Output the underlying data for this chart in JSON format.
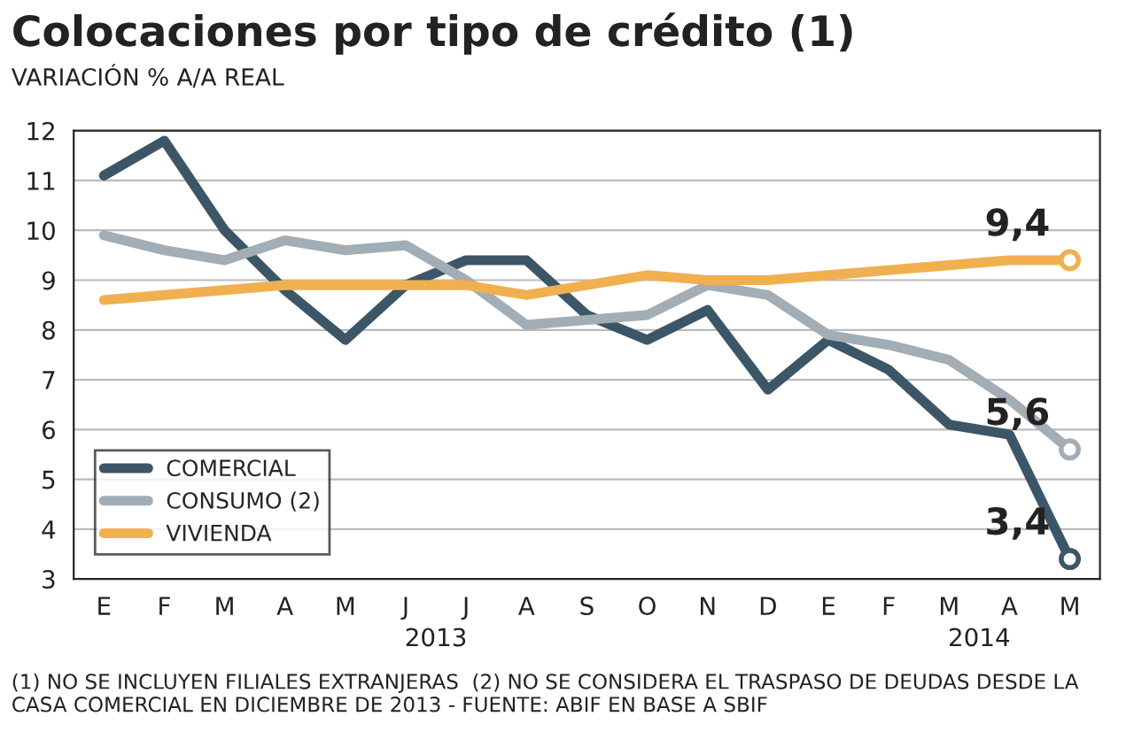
{
  "chart_data": {
    "type": "line",
    "title": "Colocaciones por tipo de crédito (1)",
    "subtitle": "VARIACIÓN % A/A REAL",
    "categories": [
      "E",
      "F",
      "M",
      "A",
      "M",
      "J",
      "J",
      "A",
      "S",
      "O",
      "N",
      "D",
      "E",
      "F",
      "M",
      "A",
      "M"
    ],
    "series": [
      {
        "name": "COMERCIAL",
        "color": "#3d5667",
        "values": [
          11.1,
          11.8,
          10.0,
          8.8,
          7.8,
          8.9,
          9.4,
          9.4,
          8.3,
          7.8,
          8.4,
          6.8,
          7.8,
          7.2,
          6.1,
          5.9,
          3.4
        ],
        "value_labels": [
          null,
          null,
          null,
          null,
          null,
          null,
          null,
          null,
          null,
          null,
          null,
          null,
          null,
          null,
          null,
          null,
          "3,4"
        ]
      },
      {
        "name": "CONSUMO (2)",
        "color": "#a3adb5",
        "values": [
          9.9,
          9.6,
          9.4,
          9.8,
          9.6,
          9.7,
          9.0,
          8.1,
          8.2,
          8.3,
          8.9,
          8.7,
          7.9,
          7.7,
          7.4,
          6.6,
          5.6
        ],
        "value_labels": [
          null,
          null,
          null,
          null,
          null,
          null,
          null,
          null,
          null,
          null,
          null,
          null,
          null,
          null,
          null,
          null,
          "5,6"
        ]
      },
      {
        "name": "VIVIENDA",
        "color": "#f0b050",
        "values": [
          8.6,
          8.7,
          8.8,
          8.9,
          8.9,
          8.9,
          8.9,
          8.7,
          8.9,
          9.1,
          9.0,
          9.0,
          9.1,
          9.2,
          9.3,
          9.4,
          9.4
        ],
        "value_labels": [
          null,
          null,
          null,
          null,
          null,
          null,
          null,
          null,
          null,
          null,
          null,
          null,
          null,
          null,
          null,
          null,
          "9,4"
        ]
      }
    ],
    "ylim": [
      3,
      12
    ],
    "yticks": [
      3,
      4,
      5,
      6,
      7,
      8,
      9,
      10,
      11,
      12
    ],
    "grid": "y",
    "legend": "bottom left",
    "marker": "none",
    "line_style": "solid",
    "annotations": [
      "2013",
      "2014",
      "(1) NO SE INCLUYEN FILIALES EXTRANJERAS  (2) NO SE CONSIDERA EL TRASPASO DE DEUDAS DESDE LA CASA COMERCIAL EN DICIEMBRE DE 2013 - FUENTE: ABIF EN BASE A SBIF"
    ]
  }
}
